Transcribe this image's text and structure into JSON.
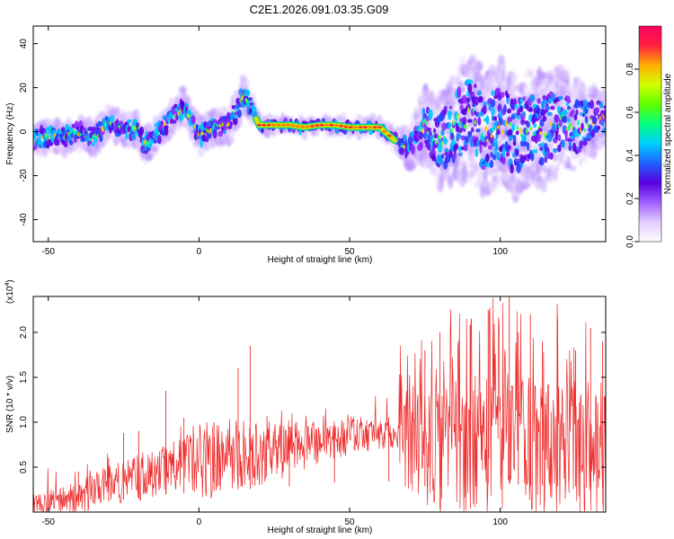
{
  "figure_title": "C2E1.2026.091.03.35.G09",
  "chart_data": [
    {
      "type": "heatmap",
      "title": "",
      "xlabel": "Height of straight line (km)",
      "ylabel": "Frequency (Hz)",
      "xlim": [
        -55,
        135
      ],
      "ylim": [
        -50,
        48
      ],
      "xticks": [
        -50,
        0,
        50,
        100
      ],
      "yticks": [
        -40,
        -20,
        0,
        20,
        40
      ],
      "colorbar": {
        "label": "Normalized spectral amplitude",
        "range": [
          0.0,
          1.0
        ],
        "ticks": [
          0.0,
          0.2,
          0.4,
          0.6,
          0.8
        ],
        "tick_labels": [
          "0.0",
          "0.2",
          "0.4",
          "0.6",
          "0.8"
        ],
        "colormap": [
          "#ffffff",
          "#e4ccff",
          "#a060ff",
          "#5a00e0",
          "#2060ff",
          "#00d0ff",
          "#00ff80",
          "#60ff00",
          "#d0ff00",
          "#ffb000",
          "#ff2040",
          "#ff0060"
        ]
      },
      "ridge": {
        "x": [
          -55,
          -50,
          -45,
          -40,
          -35,
          -30,
          -25,
          -20,
          -18,
          -15,
          -10,
          -5,
          0,
          5,
          10,
          15,
          20,
          25,
          30,
          35,
          40,
          45,
          50,
          55,
          60,
          65,
          70,
          75,
          80,
          85,
          90,
          95,
          100,
          105,
          110,
          115,
          120,
          125,
          130,
          135
        ],
        "y": [
          -4,
          -2,
          -3,
          0,
          -3,
          4,
          2,
          1,
          -6,
          -2,
          4,
          12,
          -2,
          2,
          3,
          17,
          3,
          3,
          3,
          2,
          3,
          3,
          2,
          2,
          2,
          -4,
          -8,
          3,
          -5,
          2,
          8,
          -2,
          5,
          -3,
          3,
          0,
          6,
          2,
          4,
          7
        ]
      },
      "spread": {
        "x": [
          -55,
          -20,
          15,
          20,
          65,
          70,
          75,
          80,
          85,
          90,
          95,
          100,
          105,
          110,
          115,
          120,
          125,
          130,
          135
        ],
        "y": [
          6,
          6,
          7,
          3,
          3,
          8,
          14,
          18,
          22,
          26,
          24,
          26,
          24,
          22,
          24,
          20,
          18,
          14,
          10
        ]
      }
    },
    {
      "type": "line",
      "title": "",
      "xlabel": "Height of straight line (km)",
      "ylabel": "SNR (10 * v/v)",
      "y_multiplier": "(x10^4)",
      "xlim": [
        -55,
        135
      ],
      "ylim": [
        0,
        2.4
      ],
      "xticks": [
        -50,
        0,
        50,
        100
      ],
      "yticks": [
        0.5,
        1.0,
        1.5,
        2.0
      ],
      "ytick_labels": [
        "0.5",
        "1.0",
        "1.5",
        "2.0"
      ],
      "series": [
        {
          "color": "#ee2a2a",
          "baseline": {
            "x": [
              -55,
              -40,
              -30,
              -20,
              -10,
              0,
              10,
              20,
              30,
              40,
              50,
              55,
              60,
              65,
              70,
              80,
              90,
              100,
              110,
              120,
              130,
              135
            ],
            "y": [
              0.07,
              0.16,
              0.3,
              0.38,
              0.5,
              0.56,
              0.62,
              0.66,
              0.72,
              0.8,
              0.85,
              0.86,
              0.87,
              0.85,
              0.75,
              0.7,
              0.75,
              0.8,
              0.75,
              0.72,
              0.7,
              0.65
            ]
          },
          "spikes": [
            {
              "x": -40,
              "y": 0.45
            },
            {
              "x": -30,
              "y": 0.6
            },
            {
              "x": -25,
              "y": 0.88
            },
            {
              "x": -20,
              "y": 0.9
            },
            {
              "x": -11,
              "y": 1.35
            },
            {
              "x": -5,
              "y": 1.05
            },
            {
              "x": 5,
              "y": 1.0
            },
            {
              "x": 13,
              "y": 1.6
            },
            {
              "x": 17,
              "y": 1.85
            },
            {
              "x": 30,
              "y": 0.95
            },
            {
              "x": 45,
              "y": 0.95
            },
            {
              "x": 63,
              "y": 1.05
            },
            {
              "x": 75,
              "y": 1.8
            },
            {
              "x": 80,
              "y": 2.0
            },
            {
              "x": 90,
              "y": 2.08
            },
            {
              "x": 96,
              "y": 2.25
            },
            {
              "x": 103,
              "y": 2.4
            },
            {
              "x": 106,
              "y": 2.0
            },
            {
              "x": 110,
              "y": 2.2
            },
            {
              "x": 114,
              "y": 1.9
            },
            {
              "x": 119,
              "y": 2.15
            },
            {
              "x": 125,
              "y": 1.8
            },
            {
              "x": 130,
              "y": 2.05
            },
            {
              "x": 134,
              "y": 1.9
            }
          ]
        }
      ]
    }
  ]
}
